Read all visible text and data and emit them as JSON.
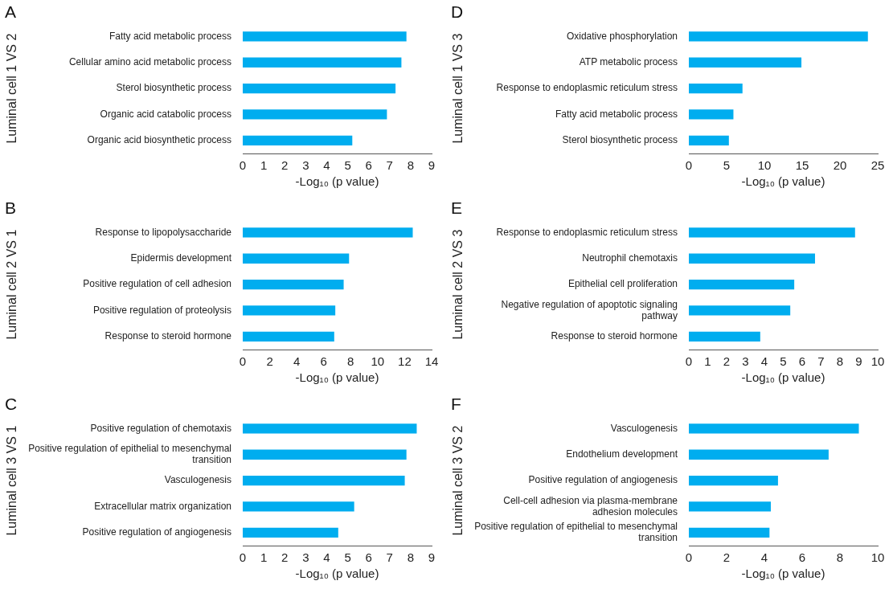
{
  "chart_data": [
    {
      "type": "bar",
      "orientation": "horizontal",
      "title": "A",
      "ylabel": "Luminal cell 1 VS 2",
      "xlabel": "-Log₁₀ (p value)",
      "categories": [
        "Fatty acid metabolic process",
        "Cellular amino acid metabolic process",
        "Sterol biosynthetic process",
        "Organic acid catabolic process",
        "Organic acid biosynthetic process"
      ],
      "values": [
        7.8,
        7.56,
        7.28,
        6.87,
        5.22
      ],
      "color": "#00adef",
      "xlim": [
        0,
        9
      ],
      "xticks": [
        0,
        1,
        2,
        3,
        4,
        5,
        6,
        7,
        8,
        9
      ],
      "grid": false,
      "legend": false
    },
    {
      "type": "bar",
      "orientation": "horizontal",
      "title": "D",
      "ylabel": "Luminal cell 1 VS 3",
      "xlabel": "-Log₁₀ (p value)",
      "categories": [
        "Oxidative phosphorylation",
        "ATP metabolic process",
        "Response to endoplasmic reticulum stress",
        "Fatty acid metabolic process",
        "Sterol biosynthetic process"
      ],
      "values": [
        23.7,
        14.9,
        7.1,
        5.9,
        5.3
      ],
      "color": "#00adef",
      "xlim": [
        0,
        25
      ],
      "xticks": [
        0,
        5,
        10,
        15,
        20,
        25
      ],
      "grid": false,
      "legend": false
    },
    {
      "type": "bar",
      "orientation": "horizontal",
      "title": "B",
      "ylabel": "Luminal cell 2 VS 1",
      "xlabel": "-Log₁₀ (p value)",
      "categories": [
        "Response to lipopolysaccharide",
        "Epidermis development",
        "Positive regulation of cell adhesion",
        "Positive regulation of proteolysis",
        "Response to steroid hormone"
      ],
      "values": [
        12.6,
        7.88,
        7.48,
        6.86,
        6.78
      ],
      "color": "#00adef",
      "xlim": [
        0,
        14
      ],
      "xticks": [
        0,
        2,
        4,
        6,
        8,
        10,
        12,
        14
      ],
      "grid": false,
      "legend": false
    },
    {
      "type": "bar",
      "orientation": "horizontal",
      "title": "E",
      "ylabel": "Luminal cell 2 VS 3",
      "xlabel": "-Log₁₀ (p value)",
      "categories": [
        "Response to endoplasmic reticulum stress",
        "Neutrophil chemotaxis",
        "Epithelial cell proliferation",
        "Negative regulation of apoptotic signaling pathway",
        "Response to steroid hormone"
      ],
      "values": [
        8.8,
        6.68,
        5.58,
        5.37,
        3.78
      ],
      "color": "#00adef",
      "xlim": [
        0,
        10
      ],
      "xticks": [
        0,
        1,
        2,
        3,
        4,
        5,
        6,
        7,
        8,
        9,
        10
      ],
      "grid": false,
      "legend": false
    },
    {
      "type": "bar",
      "orientation": "horizontal",
      "title": "C",
      "ylabel": "Luminal cell 3 VS 1",
      "xlabel": "-Log₁₀ (p value)",
      "categories": [
        "Positive regulation of chemotaxis",
        "Positive regulation of epithelial to mesenchymal transition",
        "Vasculogenesis",
        "Extracellular matrix organization",
        "Positive regulation of angiogenesis"
      ],
      "values": [
        8.29,
        7.8,
        7.72,
        5.31,
        4.55
      ],
      "color": "#00adef",
      "xlim": [
        0,
        9
      ],
      "xticks": [
        0,
        1,
        2,
        3,
        4,
        5,
        6,
        7,
        8,
        9
      ],
      "grid": false,
      "legend": false
    },
    {
      "type": "bar",
      "orientation": "horizontal",
      "title": "F",
      "ylabel": "Luminal cell 3 VS 2",
      "xlabel": "-Log₁₀ (p value)",
      "categories": [
        "Vasculogenesis",
        "Endothelium development",
        "Positive regulation of angiogenesis",
        "Cell-cell adhesion via plasma-membrane adhesion molecules",
        "Positive regulation of epithelial to mesenchymal transition"
      ],
      "values": [
        9.0,
        7.4,
        4.72,
        4.34,
        4.27
      ],
      "color": "#00adef",
      "xlim": [
        0,
        10
      ],
      "xticks": [
        0,
        2,
        4,
        6,
        8,
        10
      ],
      "grid": false,
      "legend": false
    }
  ]
}
